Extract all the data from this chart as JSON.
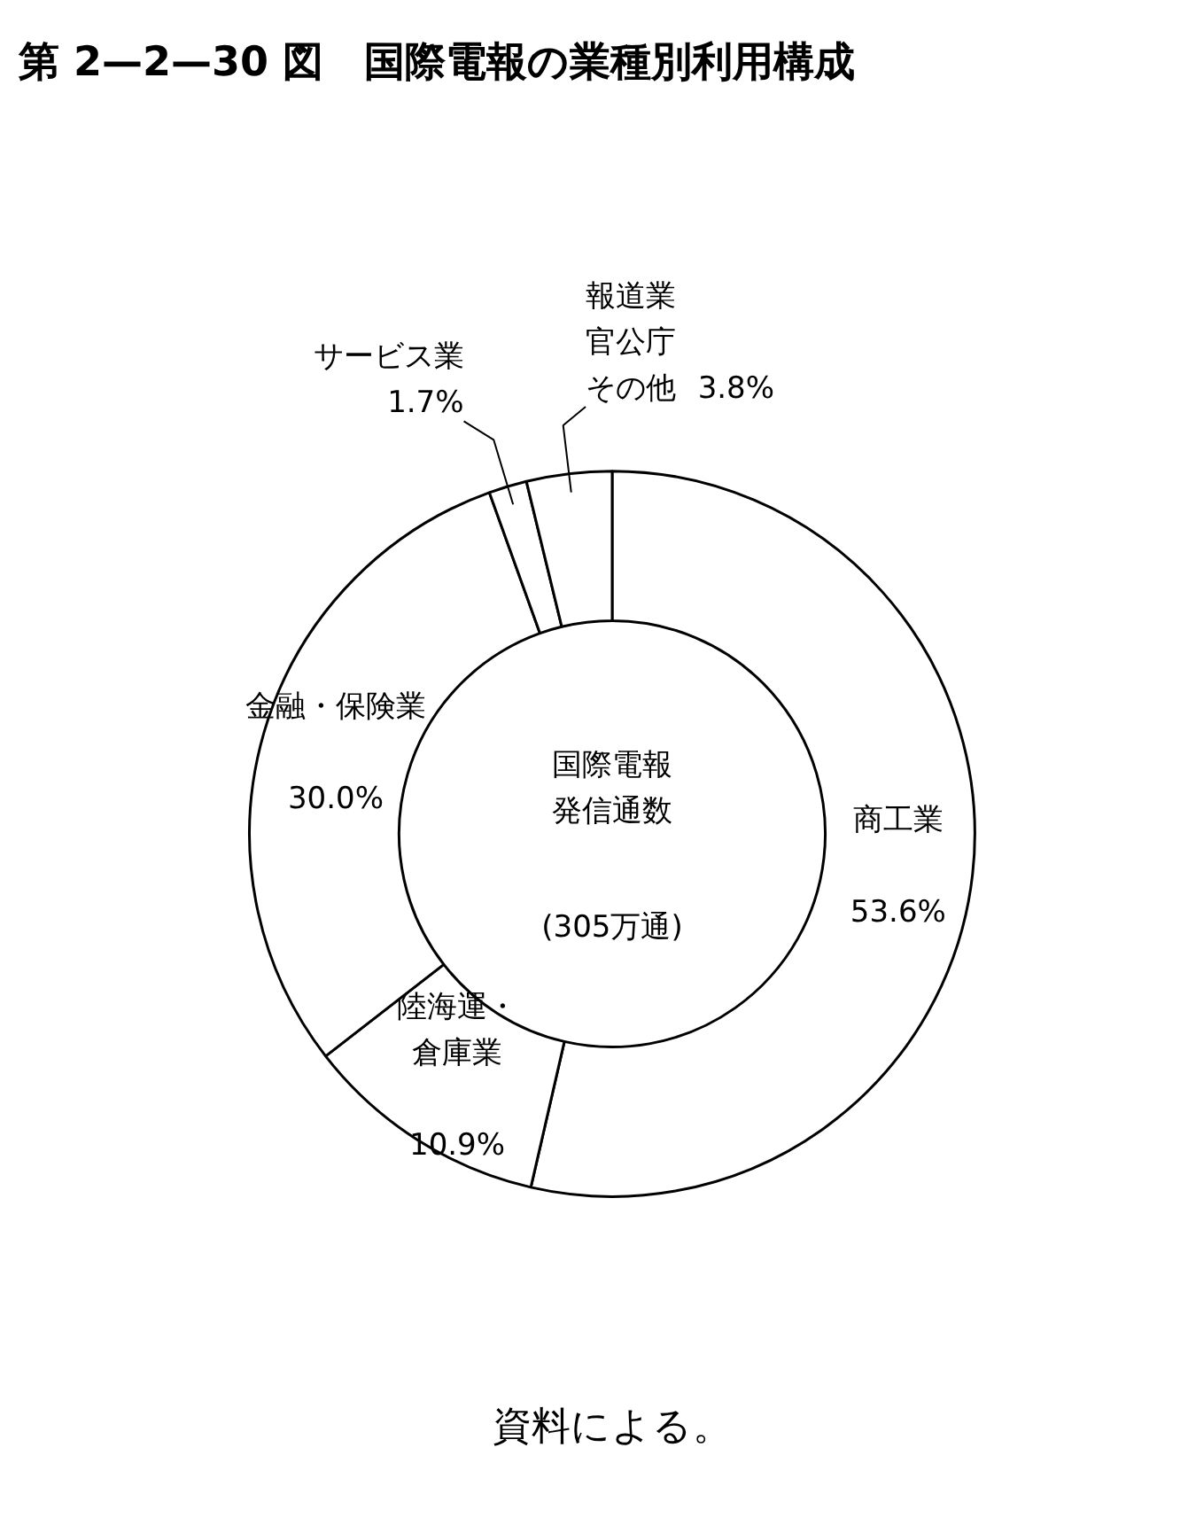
{
  "chart_data": {
    "type": "donut",
    "title": "第 2—2—30 図　国際電報の業種別利用構成",
    "categories": [
      "商工業",
      "陸海運・倉庫業",
      "金融・保険業",
      "サービス業",
      "報道業官公庁その他"
    ],
    "values": [
      53.6,
      10.9,
      30.0,
      1.7,
      3.8
    ],
    "value_labels": [
      "53.6%",
      "10.9%",
      "30.0%",
      "1.7%",
      "3.8%"
    ],
    "colors": [
      "#ffffff",
      "#ffffff",
      "#ffffff",
      "#ffffff",
      "#ffffff"
    ],
    "annotations": [
      "国際電報発信通数",
      "(305万通)",
      "資料による。"
    ]
  }
}
